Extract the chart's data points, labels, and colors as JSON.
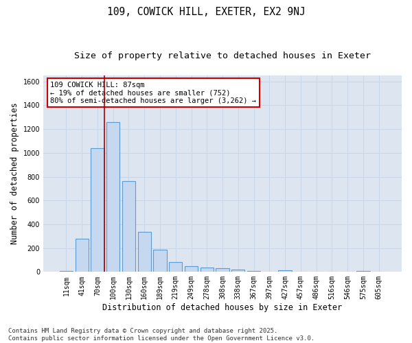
{
  "title_line1": "109, COWICK HILL, EXETER, EX2 9NJ",
  "title_line2": "Size of property relative to detached houses in Exeter",
  "xlabel": "Distribution of detached houses by size in Exeter",
  "ylabel": "Number of detached properties",
  "categories": [
    "11sqm",
    "41sqm",
    "70sqm",
    "100sqm",
    "130sqm",
    "160sqm",
    "189sqm",
    "219sqm",
    "249sqm",
    "278sqm",
    "308sqm",
    "338sqm",
    "367sqm",
    "397sqm",
    "427sqm",
    "457sqm",
    "486sqm",
    "516sqm",
    "546sqm",
    "575sqm",
    "605sqm"
  ],
  "values": [
    8,
    280,
    1040,
    1260,
    760,
    335,
    185,
    80,
    50,
    38,
    28,
    20,
    10,
    0,
    15,
    0,
    0,
    0,
    0,
    8,
    0
  ],
  "bar_color": "#c5d8f0",
  "bar_edge_color": "#5b9bd5",
  "vline_color": "#aa0000",
  "vline_index": 2,
  "annotation_text": "109 COWICK HILL: 87sqm\n← 19% of detached houses are smaller (752)\n80% of semi-detached houses are larger (3,262) →",
  "annotation_box_color": "white",
  "annotation_box_edge_color": "#cc0000",
  "ylim": [
    0,
    1650
  ],
  "yticks": [
    0,
    200,
    400,
    600,
    800,
    1000,
    1200,
    1400,
    1600
  ],
  "grid_color": "#c8d4e8",
  "background_color": "#dde5f0",
  "footer_text": "Contains HM Land Registry data © Crown copyright and database right 2025.\nContains public sector information licensed under the Open Government Licence v3.0.",
  "title_fontsize": 10.5,
  "subtitle_fontsize": 9.5,
  "tick_fontsize": 7,
  "label_fontsize": 8.5,
  "annotation_fontsize": 7.5,
  "footer_fontsize": 6.5
}
